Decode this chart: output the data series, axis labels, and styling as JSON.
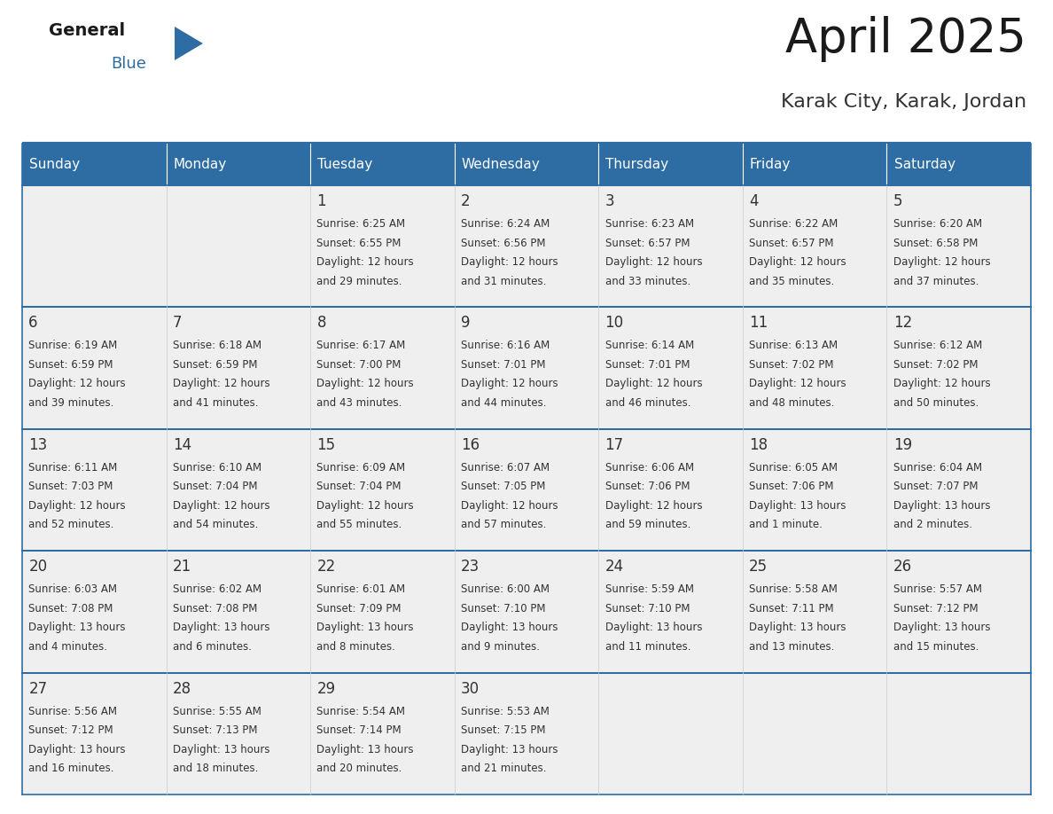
{
  "title": "April 2025",
  "subtitle": "Karak City, Karak, Jordan",
  "header_bg_color": "#2E6DA4",
  "header_text_color": "#FFFFFF",
  "cell_bg_color": "#EFEFEF",
  "cell_bg_color2": "#FFFFFF",
  "day_headers": [
    "Sunday",
    "Monday",
    "Tuesday",
    "Wednesday",
    "Thursday",
    "Friday",
    "Saturday"
  ],
  "title_color": "#1a1a1a",
  "subtitle_color": "#333333",
  "text_color": "#333333",
  "line_color": "#2E6DA4",
  "logo_general_color": "#1a1a1a",
  "logo_blue_color": "#2E6DA4",
  "days": [
    {
      "col": 0,
      "row": 0,
      "date": "",
      "sunrise": "",
      "sunset": "",
      "daylight_line1": "",
      "daylight_line2": ""
    },
    {
      "col": 1,
      "row": 0,
      "date": "",
      "sunrise": "",
      "sunset": "",
      "daylight_line1": "",
      "daylight_line2": ""
    },
    {
      "col": 2,
      "row": 0,
      "date": "1",
      "sunrise": "Sunrise: 6:25 AM",
      "sunset": "Sunset: 6:55 PM",
      "daylight_line1": "Daylight: 12 hours",
      "daylight_line2": "and 29 minutes."
    },
    {
      "col": 3,
      "row": 0,
      "date": "2",
      "sunrise": "Sunrise: 6:24 AM",
      "sunset": "Sunset: 6:56 PM",
      "daylight_line1": "Daylight: 12 hours",
      "daylight_line2": "and 31 minutes."
    },
    {
      "col": 4,
      "row": 0,
      "date": "3",
      "sunrise": "Sunrise: 6:23 AM",
      "sunset": "Sunset: 6:57 PM",
      "daylight_line1": "Daylight: 12 hours",
      "daylight_line2": "and 33 minutes."
    },
    {
      "col": 5,
      "row": 0,
      "date": "4",
      "sunrise": "Sunrise: 6:22 AM",
      "sunset": "Sunset: 6:57 PM",
      "daylight_line1": "Daylight: 12 hours",
      "daylight_line2": "and 35 minutes."
    },
    {
      "col": 6,
      "row": 0,
      "date": "5",
      "sunrise": "Sunrise: 6:20 AM",
      "sunset": "Sunset: 6:58 PM",
      "daylight_line1": "Daylight: 12 hours",
      "daylight_line2": "and 37 minutes."
    },
    {
      "col": 0,
      "row": 1,
      "date": "6",
      "sunrise": "Sunrise: 6:19 AM",
      "sunset": "Sunset: 6:59 PM",
      "daylight_line1": "Daylight: 12 hours",
      "daylight_line2": "and 39 minutes."
    },
    {
      "col": 1,
      "row": 1,
      "date": "7",
      "sunrise": "Sunrise: 6:18 AM",
      "sunset": "Sunset: 6:59 PM",
      "daylight_line1": "Daylight: 12 hours",
      "daylight_line2": "and 41 minutes."
    },
    {
      "col": 2,
      "row": 1,
      "date": "8",
      "sunrise": "Sunrise: 6:17 AM",
      "sunset": "Sunset: 7:00 PM",
      "daylight_line1": "Daylight: 12 hours",
      "daylight_line2": "and 43 minutes."
    },
    {
      "col": 3,
      "row": 1,
      "date": "9",
      "sunrise": "Sunrise: 6:16 AM",
      "sunset": "Sunset: 7:01 PM",
      "daylight_line1": "Daylight: 12 hours",
      "daylight_line2": "and 44 minutes."
    },
    {
      "col": 4,
      "row": 1,
      "date": "10",
      "sunrise": "Sunrise: 6:14 AM",
      "sunset": "Sunset: 7:01 PM",
      "daylight_line1": "Daylight: 12 hours",
      "daylight_line2": "and 46 minutes."
    },
    {
      "col": 5,
      "row": 1,
      "date": "11",
      "sunrise": "Sunrise: 6:13 AM",
      "sunset": "Sunset: 7:02 PM",
      "daylight_line1": "Daylight: 12 hours",
      "daylight_line2": "and 48 minutes."
    },
    {
      "col": 6,
      "row": 1,
      "date": "12",
      "sunrise": "Sunrise: 6:12 AM",
      "sunset": "Sunset: 7:02 PM",
      "daylight_line1": "Daylight: 12 hours",
      "daylight_line2": "and 50 minutes."
    },
    {
      "col": 0,
      "row": 2,
      "date": "13",
      "sunrise": "Sunrise: 6:11 AM",
      "sunset": "Sunset: 7:03 PM",
      "daylight_line1": "Daylight: 12 hours",
      "daylight_line2": "and 52 minutes."
    },
    {
      "col": 1,
      "row": 2,
      "date": "14",
      "sunrise": "Sunrise: 6:10 AM",
      "sunset": "Sunset: 7:04 PM",
      "daylight_line1": "Daylight: 12 hours",
      "daylight_line2": "and 54 minutes."
    },
    {
      "col": 2,
      "row": 2,
      "date": "15",
      "sunrise": "Sunrise: 6:09 AM",
      "sunset": "Sunset: 7:04 PM",
      "daylight_line1": "Daylight: 12 hours",
      "daylight_line2": "and 55 minutes."
    },
    {
      "col": 3,
      "row": 2,
      "date": "16",
      "sunrise": "Sunrise: 6:07 AM",
      "sunset": "Sunset: 7:05 PM",
      "daylight_line1": "Daylight: 12 hours",
      "daylight_line2": "and 57 minutes."
    },
    {
      "col": 4,
      "row": 2,
      "date": "17",
      "sunrise": "Sunrise: 6:06 AM",
      "sunset": "Sunset: 7:06 PM",
      "daylight_line1": "Daylight: 12 hours",
      "daylight_line2": "and 59 minutes."
    },
    {
      "col": 5,
      "row": 2,
      "date": "18",
      "sunrise": "Sunrise: 6:05 AM",
      "sunset": "Sunset: 7:06 PM",
      "daylight_line1": "Daylight: 13 hours",
      "daylight_line2": "and 1 minute."
    },
    {
      "col": 6,
      "row": 2,
      "date": "19",
      "sunrise": "Sunrise: 6:04 AM",
      "sunset": "Sunset: 7:07 PM",
      "daylight_line1": "Daylight: 13 hours",
      "daylight_line2": "and 2 minutes."
    },
    {
      "col": 0,
      "row": 3,
      "date": "20",
      "sunrise": "Sunrise: 6:03 AM",
      "sunset": "Sunset: 7:08 PM",
      "daylight_line1": "Daylight: 13 hours",
      "daylight_line2": "and 4 minutes."
    },
    {
      "col": 1,
      "row": 3,
      "date": "21",
      "sunrise": "Sunrise: 6:02 AM",
      "sunset": "Sunset: 7:08 PM",
      "daylight_line1": "Daylight: 13 hours",
      "daylight_line2": "and 6 minutes."
    },
    {
      "col": 2,
      "row": 3,
      "date": "22",
      "sunrise": "Sunrise: 6:01 AM",
      "sunset": "Sunset: 7:09 PM",
      "daylight_line1": "Daylight: 13 hours",
      "daylight_line2": "and 8 minutes."
    },
    {
      "col": 3,
      "row": 3,
      "date": "23",
      "sunrise": "Sunrise: 6:00 AM",
      "sunset": "Sunset: 7:10 PM",
      "daylight_line1": "Daylight: 13 hours",
      "daylight_line2": "and 9 minutes."
    },
    {
      "col": 4,
      "row": 3,
      "date": "24",
      "sunrise": "Sunrise: 5:59 AM",
      "sunset": "Sunset: 7:10 PM",
      "daylight_line1": "Daylight: 13 hours",
      "daylight_line2": "and 11 minutes."
    },
    {
      "col": 5,
      "row": 3,
      "date": "25",
      "sunrise": "Sunrise: 5:58 AM",
      "sunset": "Sunset: 7:11 PM",
      "daylight_line1": "Daylight: 13 hours",
      "daylight_line2": "and 13 minutes."
    },
    {
      "col": 6,
      "row": 3,
      "date": "26",
      "sunrise": "Sunrise: 5:57 AM",
      "sunset": "Sunset: 7:12 PM",
      "daylight_line1": "Daylight: 13 hours",
      "daylight_line2": "and 15 minutes."
    },
    {
      "col": 0,
      "row": 4,
      "date": "27",
      "sunrise": "Sunrise: 5:56 AM",
      "sunset": "Sunset: 7:12 PM",
      "daylight_line1": "Daylight: 13 hours",
      "daylight_line2": "and 16 minutes."
    },
    {
      "col": 1,
      "row": 4,
      "date": "28",
      "sunrise": "Sunrise: 5:55 AM",
      "sunset": "Sunset: 7:13 PM",
      "daylight_line1": "Daylight: 13 hours",
      "daylight_line2": "and 18 minutes."
    },
    {
      "col": 2,
      "row": 4,
      "date": "29",
      "sunrise": "Sunrise: 5:54 AM",
      "sunset": "Sunset: 7:14 PM",
      "daylight_line1": "Daylight: 13 hours",
      "daylight_line2": "and 20 minutes."
    },
    {
      "col": 3,
      "row": 4,
      "date": "30",
      "sunrise": "Sunrise: 5:53 AM",
      "sunset": "Sunset: 7:15 PM",
      "daylight_line1": "Daylight: 13 hours",
      "daylight_line2": "and 21 minutes."
    },
    {
      "col": 4,
      "row": 4,
      "date": "",
      "sunrise": "",
      "sunset": "",
      "daylight_line1": "",
      "daylight_line2": ""
    },
    {
      "col": 5,
      "row": 4,
      "date": "",
      "sunrise": "",
      "sunset": "",
      "daylight_line1": "",
      "daylight_line2": ""
    },
    {
      "col": 6,
      "row": 4,
      "date": "",
      "sunrise": "",
      "sunset": "",
      "daylight_line1": "",
      "daylight_line2": ""
    }
  ]
}
